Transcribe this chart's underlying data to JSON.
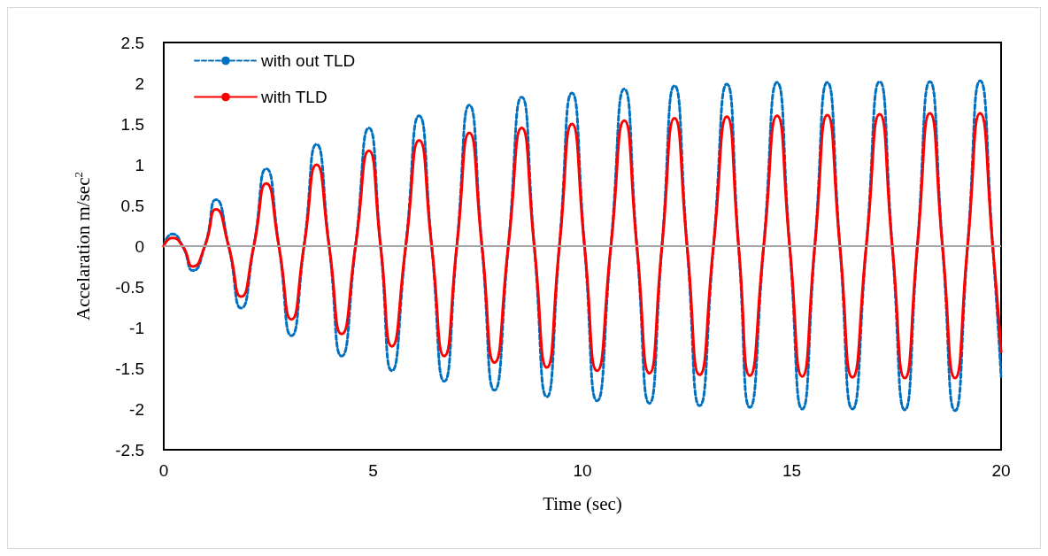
{
  "chart_data": {
    "type": "line",
    "xlabel": "Time (sec)",
    "ylabel": "Accelaration m/sec$^{2}$",
    "x": [
      0,
      0.2,
      0.45,
      0.7,
      0.98,
      1.25,
      1.55,
      1.85,
      2.15,
      2.45,
      2.75,
      3.05,
      3.35,
      3.65,
      3.95,
      4.25,
      4.58,
      4.9,
      5.18,
      5.45,
      5.78,
      6.1,
      6.4,
      6.7,
      7.0,
      7.3,
      7.6,
      7.9,
      8.23,
      8.55,
      8.85,
      9.15,
      9.45,
      9.75,
      10.05,
      10.35,
      10.68,
      11.0,
      11.3,
      11.6,
      11.9,
      12.2,
      12.5,
      12.8,
      13.13,
      13.45,
      13.73,
      14.0,
      14.33,
      14.65,
      14.95,
      15.25,
      15.55,
      15.85,
      16.15,
      16.45,
      16.78,
      17.1,
      17.4,
      17.7,
      18.0,
      18.3,
      18.6,
      18.9,
      19.2,
      19.5,
      19.8,
      20
    ],
    "series": [
      {
        "name": "with out TLD",
        "color": "#0070c0",
        "line_style": "dashed",
        "values": [
          0,
          0.15,
          0,
          -0.3,
          0,
          0.57,
          0,
          -0.76,
          0,
          0.95,
          0,
          -1.1,
          0,
          1.25,
          0,
          -1.35,
          0,
          1.45,
          0,
          -1.53,
          0,
          1.6,
          0,
          -1.66,
          0,
          1.73,
          0,
          -1.77,
          0,
          1.83,
          0,
          -1.85,
          0,
          1.88,
          0,
          -1.9,
          0,
          1.93,
          0,
          -1.93,
          0,
          1.97,
          0,
          -1.96,
          0,
          1.99,
          0,
          -1.98,
          0,
          2.01,
          0,
          -2.0,
          0,
          2.01,
          0,
          -2.0,
          0,
          2.02,
          0,
          -2.01,
          0,
          2.02,
          0,
          -2.02,
          0,
          2.03,
          0,
          -1.6
        ]
      },
      {
        "name": "with TLD",
        "color": "#ff0000",
        "line_style": "solid",
        "values": [
          0,
          0.1,
          0,
          -0.25,
          0,
          0.45,
          0,
          -0.62,
          0,
          0.77,
          0,
          -0.9,
          0,
          1.0,
          0,
          -1.08,
          0,
          1.17,
          0,
          -1.23,
          0,
          1.3,
          0,
          -1.35,
          0,
          1.39,
          0,
          -1.43,
          0,
          1.45,
          0,
          -1.49,
          0,
          1.5,
          0,
          -1.53,
          0,
          1.54,
          0,
          -1.56,
          0,
          1.57,
          0,
          -1.58,
          0,
          1.59,
          0,
          -1.59,
          0,
          1.6,
          0,
          -1.6,
          0,
          1.61,
          0,
          -1.61,
          0,
          1.62,
          0,
          -1.62,
          0,
          1.63,
          0,
          -1.62,
          0,
          1.63,
          0,
          -1.3
        ]
      }
    ],
    "xlim": [
      0,
      20
    ],
    "xticks": [
      0,
      5,
      10,
      15,
      20
    ],
    "ylim": [
      -2.5,
      2.5
    ],
    "yticks": [
      -2.5,
      -2,
      -1.5,
      -1,
      -0.5,
      0,
      0.5,
      1,
      1.5,
      2,
      2.5
    ],
    "ref_lines": [
      {
        "axis": "y",
        "value": 0,
        "color": "#a6a6a6"
      }
    ],
    "grid": false,
    "legend": "top left",
    "marker": "none"
  }
}
